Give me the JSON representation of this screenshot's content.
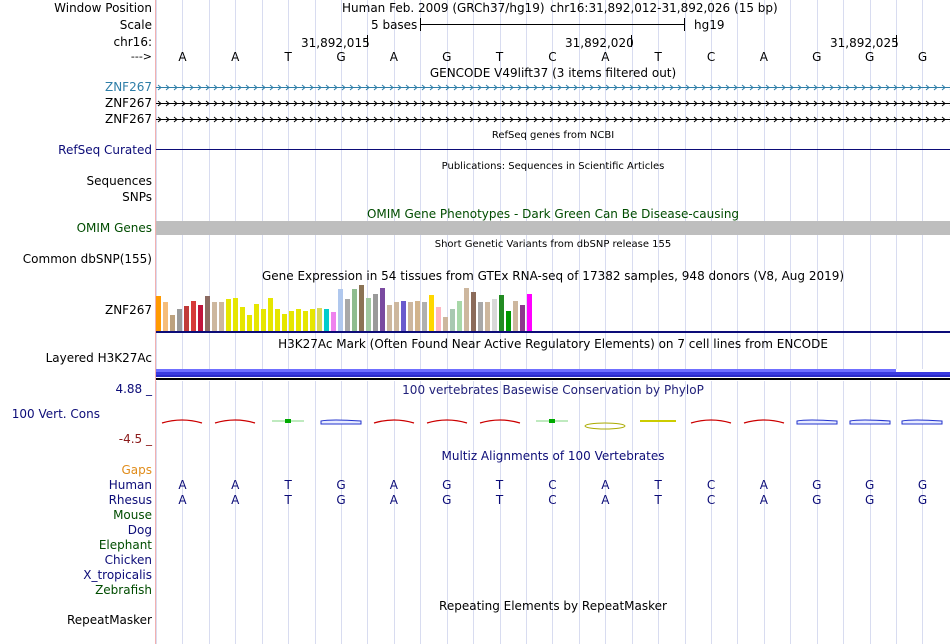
{
  "labels": {
    "window_position": "Window Position",
    "scale": "Scale",
    "chrom": "chr16:",
    "strand": "--->",
    "gencode_1": "ZNF267",
    "gencode_2": "ZNF267",
    "gencode_3": "ZNF267",
    "refseq": "RefSeq Curated",
    "sequences": "Sequences",
    "snps": "SNPs",
    "omim": "OMIM Genes",
    "dbsnp": "Common dbSNP(155)",
    "gtex_gene": "ZNF267",
    "layered": "Layered H3K27Ac",
    "cons_max": "4.88 _",
    "cons_name": "100 Vert. Cons",
    "cons_min": "-4.5 _",
    "gaps": "Gaps",
    "human": "Human",
    "rhesus": "Rhesus",
    "mouse": "Mouse",
    "dog": "Dog",
    "elephant": "Elephant",
    "chicken": "Chicken",
    "x_tropicalis": "X_tropicalis",
    "zebrafish": "Zebrafish",
    "repeatmasker": "RepeatMasker"
  },
  "colors": {
    "gencode_label": "#2e7ea8",
    "navy": "#0c0c78",
    "omim_label": "#004c00",
    "cons_scale": "#20207a",
    "cons_min": "#8b1a1a",
    "gaps": "#e08c1a",
    "species_green": "#1e6e1e"
  },
  "header": {
    "assembly": "Human Feb. 2009 (GRCh37/hg19)",
    "position": "chr16:31,892,012-31,892,026 (15 bp)",
    "scale_text": "5 bases",
    "db": "hg19",
    "coords": [
      "31,892,015",
      "31,892,020",
      "31,892,025"
    ]
  },
  "bases": [
    "A",
    "A",
    "T",
    "G",
    "A",
    "G",
    "T",
    "C",
    "A",
    "T",
    "C",
    "A",
    "G",
    "G",
    "G"
  ],
  "tracks": {
    "gencode_title": "GENCODE V49lift37 (3 items filtered out)",
    "refseq_title": "RefSeq genes from NCBI",
    "pubs_title": "Publications: Sequences in Scientific Articles",
    "omim_title": "OMIM Gene Phenotypes - Dark Green Can Be Disease-causing",
    "dbsnp_title": "Short Genetic Variants from dbSNP release 155",
    "gtex_title": "Gene Expression in 54 tissues from GTEx RNA-seq of 17382 samples, 948 donors (V8, Aug 2019)",
    "h3k27_title": "H3K27Ac Mark (Often Found Near Active Regulatory Elements) on 7 cell lines from ENCODE",
    "phylop_title": "100 vertebrates Basewise Conservation by PhyloP",
    "multiz_title": "Multiz Alignments of 100 Vertebrates",
    "repeat_title": "Repeating Elements by RepeatMasker"
  },
  "gtex_values": [
    48,
    40,
    22,
    30,
    35,
    42,
    36,
    48,
    40,
    40,
    44,
    46,
    34,
    22,
    38,
    30,
    46,
    30,
    24,
    28,
    30,
    28,
    30,
    32,
    30,
    26,
    58,
    44,
    58,
    64,
    46,
    52,
    60,
    36,
    40,
    42,
    40,
    42,
    40,
    50,
    34,
    20,
    30,
    42,
    60,
    54,
    40,
    40,
    44,
    50,
    28,
    42,
    36,
    52
  ],
  "gtex_colors": [
    "#ff9900",
    "#f5bd7a",
    "#bda27f",
    "#9a9a9a",
    "#c03a3a",
    "#d63a3a",
    "#c0143c",
    "#8b6b62",
    "#cdb79e",
    "#cdb79e",
    "#e6e600",
    "#e6e600",
    "#e6e600",
    "#e6e600",
    "#e6e600",
    "#e6e600",
    "#e6e600",
    "#e6e600",
    "#e6e600",
    "#e6e600",
    "#e6e600",
    "#e6e600",
    "#e6e600",
    "#d8d85a",
    "#00cccc",
    "#ee82ee",
    "#b0c8ee",
    "#a8a8a8",
    "#8fbc8f",
    "#8b7355",
    "#a0c8a0",
    "#9a9a9a",
    "#7a4aa0",
    "#cdb79e",
    "#cdb79e",
    "#6a5acd",
    "#cdb79e",
    "#d2b48c",
    "#b0b0b0",
    "#ffd700",
    "#ffb6c1",
    "#cdb79e",
    "#a8c8b0",
    "#a8d8a8",
    "#cdb79e",
    "#8b6b5a",
    "#a8a8a8",
    "#cdb79e",
    "#d8d8d8",
    "#228b22",
    "#009900",
    "#cdb79e",
    "#8b3a8b",
    "#ff00ff"
  ],
  "phylop_colors": [
    "#cc0000",
    "#cc0000",
    "#00aa00",
    "#2233cc",
    "#cc0000",
    "#cc0000",
    "#cc0000",
    "#00aa00",
    "#aaaa00",
    "#cccc00",
    "#cc0000",
    "#cc0000",
    "#2233cc",
    "#2233cc",
    "#2233cc"
  ]
}
